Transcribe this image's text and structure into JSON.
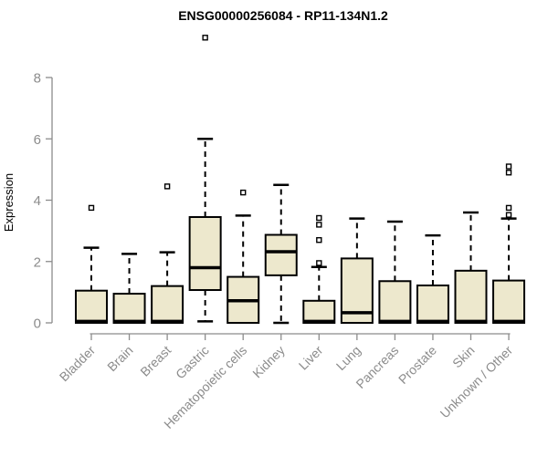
{
  "chart_data": {
    "type": "boxplot",
    "title": "ENSG00000256084 - RP11-134N1.2",
    "ylabel": "Expression",
    "xlabel": "",
    "ylim": [
      0,
      8
    ],
    "yticks": [
      0,
      2,
      4,
      6,
      8
    ],
    "grid": false,
    "legend": "none",
    "categories": [
      "Bladder",
      "Brain",
      "Breast",
      "Gastric",
      "Hematopoietic cells",
      "Kidney",
      "Liver",
      "Lung",
      "Pancreas",
      "Prostate",
      "Skin",
      "Unknown / Other"
    ],
    "boxes": [
      {
        "category": "Bladder",
        "whisker_low": 0,
        "q1": 0,
        "median": 0.05,
        "q3": 1.05,
        "whisker_high": 2.45,
        "outliers": [
          3.75
        ]
      },
      {
        "category": "Brain",
        "whisker_low": 0,
        "q1": 0,
        "median": 0.05,
        "q3": 0.95,
        "whisker_high": 2.25,
        "outliers": []
      },
      {
        "category": "Breast",
        "whisker_low": 0,
        "q1": 0,
        "median": 0.05,
        "q3": 1.2,
        "whisker_high": 2.3,
        "outliers": [
          4.45
        ]
      },
      {
        "category": "Gastric",
        "whisker_low": 0.05,
        "q1": 1.07,
        "median": 1.8,
        "q3": 3.45,
        "whisker_high": 6.0,
        "outliers": [
          9.3
        ]
      },
      {
        "category": "Hematopoietic cells",
        "whisker_low": 0,
        "q1": 0,
        "median": 0.72,
        "q3": 1.5,
        "whisker_high": 3.5,
        "outliers": [
          4.25
        ]
      },
      {
        "category": "Kidney",
        "whisker_low": 0,
        "q1": 1.55,
        "median": 2.32,
        "q3": 2.87,
        "whisker_high": 4.5,
        "outliers": []
      },
      {
        "category": "Liver",
        "whisker_low": 0,
        "q1": 0,
        "median": 0.05,
        "q3": 0.72,
        "whisker_high": 1.82,
        "outliers": [
          1.95,
          2.7,
          3.2,
          3.42
        ]
      },
      {
        "category": "Lung",
        "whisker_low": 0,
        "q1": 0,
        "median": 0.33,
        "q3": 2.1,
        "whisker_high": 3.4,
        "outliers": []
      },
      {
        "category": "Pancreas",
        "whisker_low": 0,
        "q1": 0,
        "median": 0.05,
        "q3": 1.36,
        "whisker_high": 3.3,
        "outliers": []
      },
      {
        "category": "Prostate",
        "whisker_low": 0,
        "q1": 0,
        "median": 0.05,
        "q3": 1.22,
        "whisker_high": 2.85,
        "outliers": []
      },
      {
        "category": "Skin",
        "whisker_low": 0,
        "q1": 0,
        "median": 0.05,
        "q3": 1.7,
        "whisker_high": 3.6,
        "outliers": []
      },
      {
        "category": "Unknown / Other",
        "whisker_low": 0,
        "q1": 0,
        "median": 0.05,
        "q3": 1.38,
        "whisker_high": 3.4,
        "outliers": [
          3.52,
          3.75,
          4.9,
          5.1
        ]
      }
    ],
    "colors": {
      "background": "#ffffff",
      "box_fill": "#ede8cd",
      "box_border": "#000000",
      "median": "#000000",
      "whisker": "#000000",
      "outlier": "#000000",
      "axis": "#8c8c8c",
      "tick_label": "#8c8c8c",
      "title": "#000000"
    }
  }
}
